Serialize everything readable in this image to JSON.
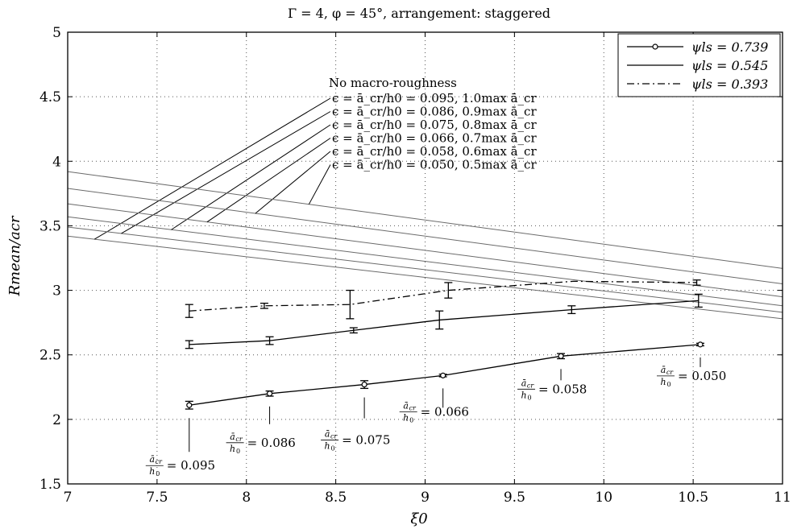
{
  "chart_data": {
    "type": "line",
    "title": "Γ = 4,  φ = 45°, arrangement: staggered",
    "xlabel": "ξ0",
    "ylabel": "Rmean/acr",
    "xlim": [
      7,
      11
    ],
    "ylim": [
      1.5,
      5
    ],
    "xticks": [
      7,
      7.5,
      8,
      8.5,
      9,
      9.5,
      10,
      10.5,
      11
    ],
    "xtick_labels": [
      "7",
      "7.5",
      "8",
      "8.5",
      "9",
      "9.5",
      "10",
      "10.5",
      "11"
    ],
    "yticks": [
      1.5,
      2,
      2.5,
      3,
      3.5,
      4,
      4.5,
      5
    ],
    "ytick_labels": [
      "1.5",
      "2",
      "2.5",
      "3",
      "3.5",
      "4",
      "4.5",
      "5"
    ],
    "grid": true,
    "legend_position": "top-right",
    "series": [
      {
        "name": "ψls = 0.739",
        "style": "solid-circle",
        "x": [
          7.68,
          8.13,
          8.66,
          9.1,
          9.76,
          10.54
        ],
        "y": [
          2.11,
          2.2,
          2.27,
          2.34,
          2.49,
          2.58
        ],
        "err": [
          0.03,
          0.02,
          0.03,
          0.01,
          0.02,
          0.01
        ]
      },
      {
        "name": "ψls = 0.545",
        "style": "solid",
        "x": [
          7.68,
          8.13,
          8.6,
          9.08,
          9.82,
          10.53
        ],
        "y": [
          2.58,
          2.61,
          2.69,
          2.77,
          2.85,
          2.92
        ],
        "err": [
          0.03,
          0.03,
          0.02,
          0.07,
          0.03,
          0.05
        ]
      },
      {
        "name": "ψls = 0.393",
        "style": "dashdot",
        "x": [
          7.68,
          8.1,
          8.58,
          9.13,
          9.83,
          10.52
        ],
        "y": [
          2.84,
          2.88,
          2.89,
          3.0,
          3.07,
          3.06
        ],
        "err": [
          0.05,
          0.02,
          0.11,
          0.06,
          0.0,
          0.02
        ]
      }
    ],
    "reference_lines": {
      "header": "No macro-roughness",
      "lines": [
        {
          "label": "ϵ = ā_cr/h0 = 0.095, 1.0max ā_cr",
          "y_at_7": 3.42,
          "y_at_11": 2.78
        },
        {
          "label": "ϵ = ā_cr/h0 = 0.086, 0.9max ā_cr",
          "y_at_7": 3.49,
          "y_at_11": 2.83
        },
        {
          "label": "ϵ = ā_cr/h0 = 0.075, 0.8max ā_cr",
          "y_at_7": 3.57,
          "y_at_11": 2.88
        },
        {
          "label": "ϵ = ā_cr/h0 = 0.066, 0.7max ā_cr",
          "y_at_7": 3.67,
          "y_at_11": 2.95
        },
        {
          "label": "ϵ = ā_cr/h0 = 0.058, 0.6max ā_cr",
          "y_at_7": 3.79,
          "y_at_11": 3.05
        },
        {
          "label": "ϵ = ā_cr/h0 = 0.050, 0.5max ā_cr",
          "y_at_7": 3.92,
          "y_at_11": 3.17
        }
      ]
    },
    "point_annotations": [
      {
        "value": "= 0.095",
        "x": 7.68,
        "y": 2.11
      },
      {
        "value": "= 0.086",
        "x": 8.13,
        "y": 2.2
      },
      {
        "value": "= 0.075",
        "x": 8.66,
        "y": 2.27
      },
      {
        "value": "= 0.066",
        "x": 9.1,
        "y": 2.34
      },
      {
        "value": "= 0.058",
        "x": 9.76,
        "y": 2.49
      },
      {
        "value": "= 0.050",
        "x": 10.54,
        "y": 2.58
      }
    ]
  }
}
